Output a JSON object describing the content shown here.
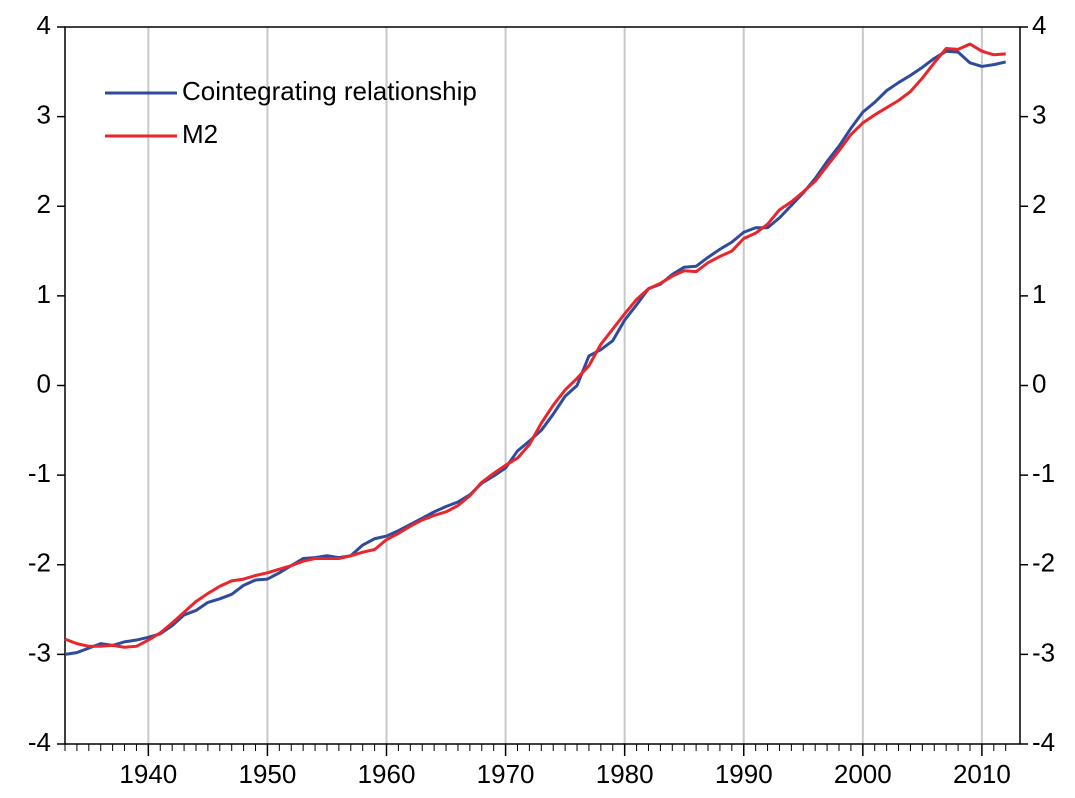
{
  "chart_data": {
    "type": "line",
    "x": [
      1933,
      1934,
      1935,
      1936,
      1937,
      1938,
      1939,
      1940,
      1941,
      1942,
      1943,
      1944,
      1945,
      1946,
      1947,
      1948,
      1949,
      1950,
      1951,
      1952,
      1953,
      1954,
      1955,
      1956,
      1957,
      1958,
      1959,
      1960,
      1961,
      1962,
      1963,
      1964,
      1965,
      1966,
      1967,
      1968,
      1969,
      1970,
      1971,
      1972,
      1973,
      1974,
      1975,
      1976,
      1977,
      1978,
      1979,
      1980,
      1981,
      1982,
      1983,
      1984,
      1985,
      1986,
      1987,
      1988,
      1989,
      1990,
      1991,
      1992,
      1993,
      1994,
      1995,
      1996,
      1997,
      1998,
      1999,
      2000,
      2001,
      2002,
      2003,
      2004,
      2005,
      2006,
      2007,
      2008,
      2009,
      2010,
      2011,
      2012
    ],
    "series": [
      {
        "name": "Cointegrating relationship",
        "color": "#2f4b9e",
        "values": [
          -3.0,
          -2.98,
          -2.93,
          -2.88,
          -2.9,
          -2.86,
          -2.84,
          -2.81,
          -2.77,
          -2.68,
          -2.56,
          -2.51,
          -2.42,
          -2.38,
          -2.33,
          -2.23,
          -2.17,
          -2.16,
          -2.09,
          -2.01,
          -1.93,
          -1.92,
          -1.9,
          -1.92,
          -1.9,
          -1.78,
          -1.71,
          -1.68,
          -1.62,
          -1.55,
          -1.48,
          -1.41,
          -1.35,
          -1.3,
          -1.22,
          -1.09,
          -1.01,
          -0.92,
          -0.73,
          -0.62,
          -0.5,
          -0.32,
          -0.12,
          0.0,
          0.33,
          0.4,
          0.5,
          0.73,
          0.9,
          1.08,
          1.13,
          1.24,
          1.32,
          1.33,
          1.43,
          1.52,
          1.6,
          1.71,
          1.76,
          1.76,
          1.87,
          2.01,
          2.15,
          2.31,
          2.5,
          2.67,
          2.87,
          3.05,
          3.16,
          3.29,
          3.38,
          3.46,
          3.55,
          3.65,
          3.73,
          3.72,
          3.6,
          3.56,
          3.58,
          3.61
        ]
      },
      {
        "name": "M2",
        "color": "#e8262b",
        "values": [
          -2.83,
          -2.88,
          -2.91,
          -2.91,
          -2.9,
          -2.92,
          -2.91,
          -2.84,
          -2.76,
          -2.65,
          -2.53,
          -2.41,
          -2.32,
          -2.24,
          -2.18,
          -2.16,
          -2.12,
          -2.09,
          -2.05,
          -2.01,
          -1.96,
          -1.93,
          -1.93,
          -1.93,
          -1.9,
          -1.86,
          -1.83,
          -1.72,
          -1.65,
          -1.57,
          -1.5,
          -1.45,
          -1.41,
          -1.34,
          -1.23,
          -1.08,
          -0.98,
          -0.89,
          -0.81,
          -0.66,
          -0.42,
          -0.22,
          -0.05,
          0.08,
          0.22,
          0.46,
          0.63,
          0.8,
          0.96,
          1.08,
          1.14,
          1.22,
          1.28,
          1.27,
          1.37,
          1.44,
          1.5,
          1.64,
          1.7,
          1.8,
          1.96,
          2.05,
          2.16,
          2.28,
          2.45,
          2.62,
          2.8,
          2.93,
          3.02,
          3.1,
          3.18,
          3.28,
          3.43,
          3.6,
          3.76,
          3.75,
          3.81,
          3.73,
          3.69,
          3.7
        ]
      }
    ],
    "xlim": [
      1933,
      2013.2
    ],
    "xticks": [
      1940,
      1950,
      1960,
      1970,
      1980,
      1990,
      2000,
      2010
    ],
    "ylim": [
      -4,
      4
    ],
    "yticks": [
      -4,
      -3,
      -2,
      -1,
      0,
      1,
      2,
      3,
      4
    ],
    "xgrid": true,
    "right_axis_mirror": true,
    "legend": "upper-left"
  }
}
